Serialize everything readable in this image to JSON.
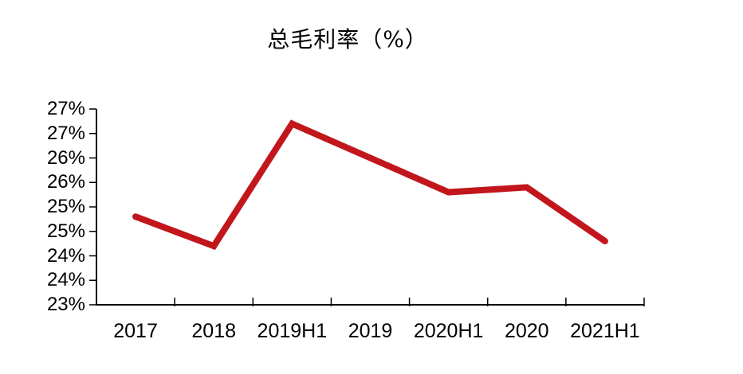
{
  "page": {
    "background_color": "#ffffff"
  },
  "chart_data": {
    "type": "line",
    "title": "总毛利率（%）",
    "categories": [
      "2017",
      "2018",
      "2019H1",
      "2019",
      "2020H1",
      "2020",
      "2021H1"
    ],
    "values": [
      24.8,
      24.2,
      26.7,
      26.0,
      25.3,
      25.4,
      24.3
    ],
    "xlabel": "",
    "ylabel": "",
    "ylim": [
      23,
      27
    ],
    "y_tick_step": 0.5,
    "y_tick_labels": [
      "27%",
      "27%",
      "26%",
      "26%",
      "25%",
      "25%",
      "24%",
      "24%",
      "23%"
    ],
    "grid": false,
    "legend": "none",
    "line_color": "#C2161D",
    "axis_color": "#000000",
    "text_color": "#000000"
  }
}
